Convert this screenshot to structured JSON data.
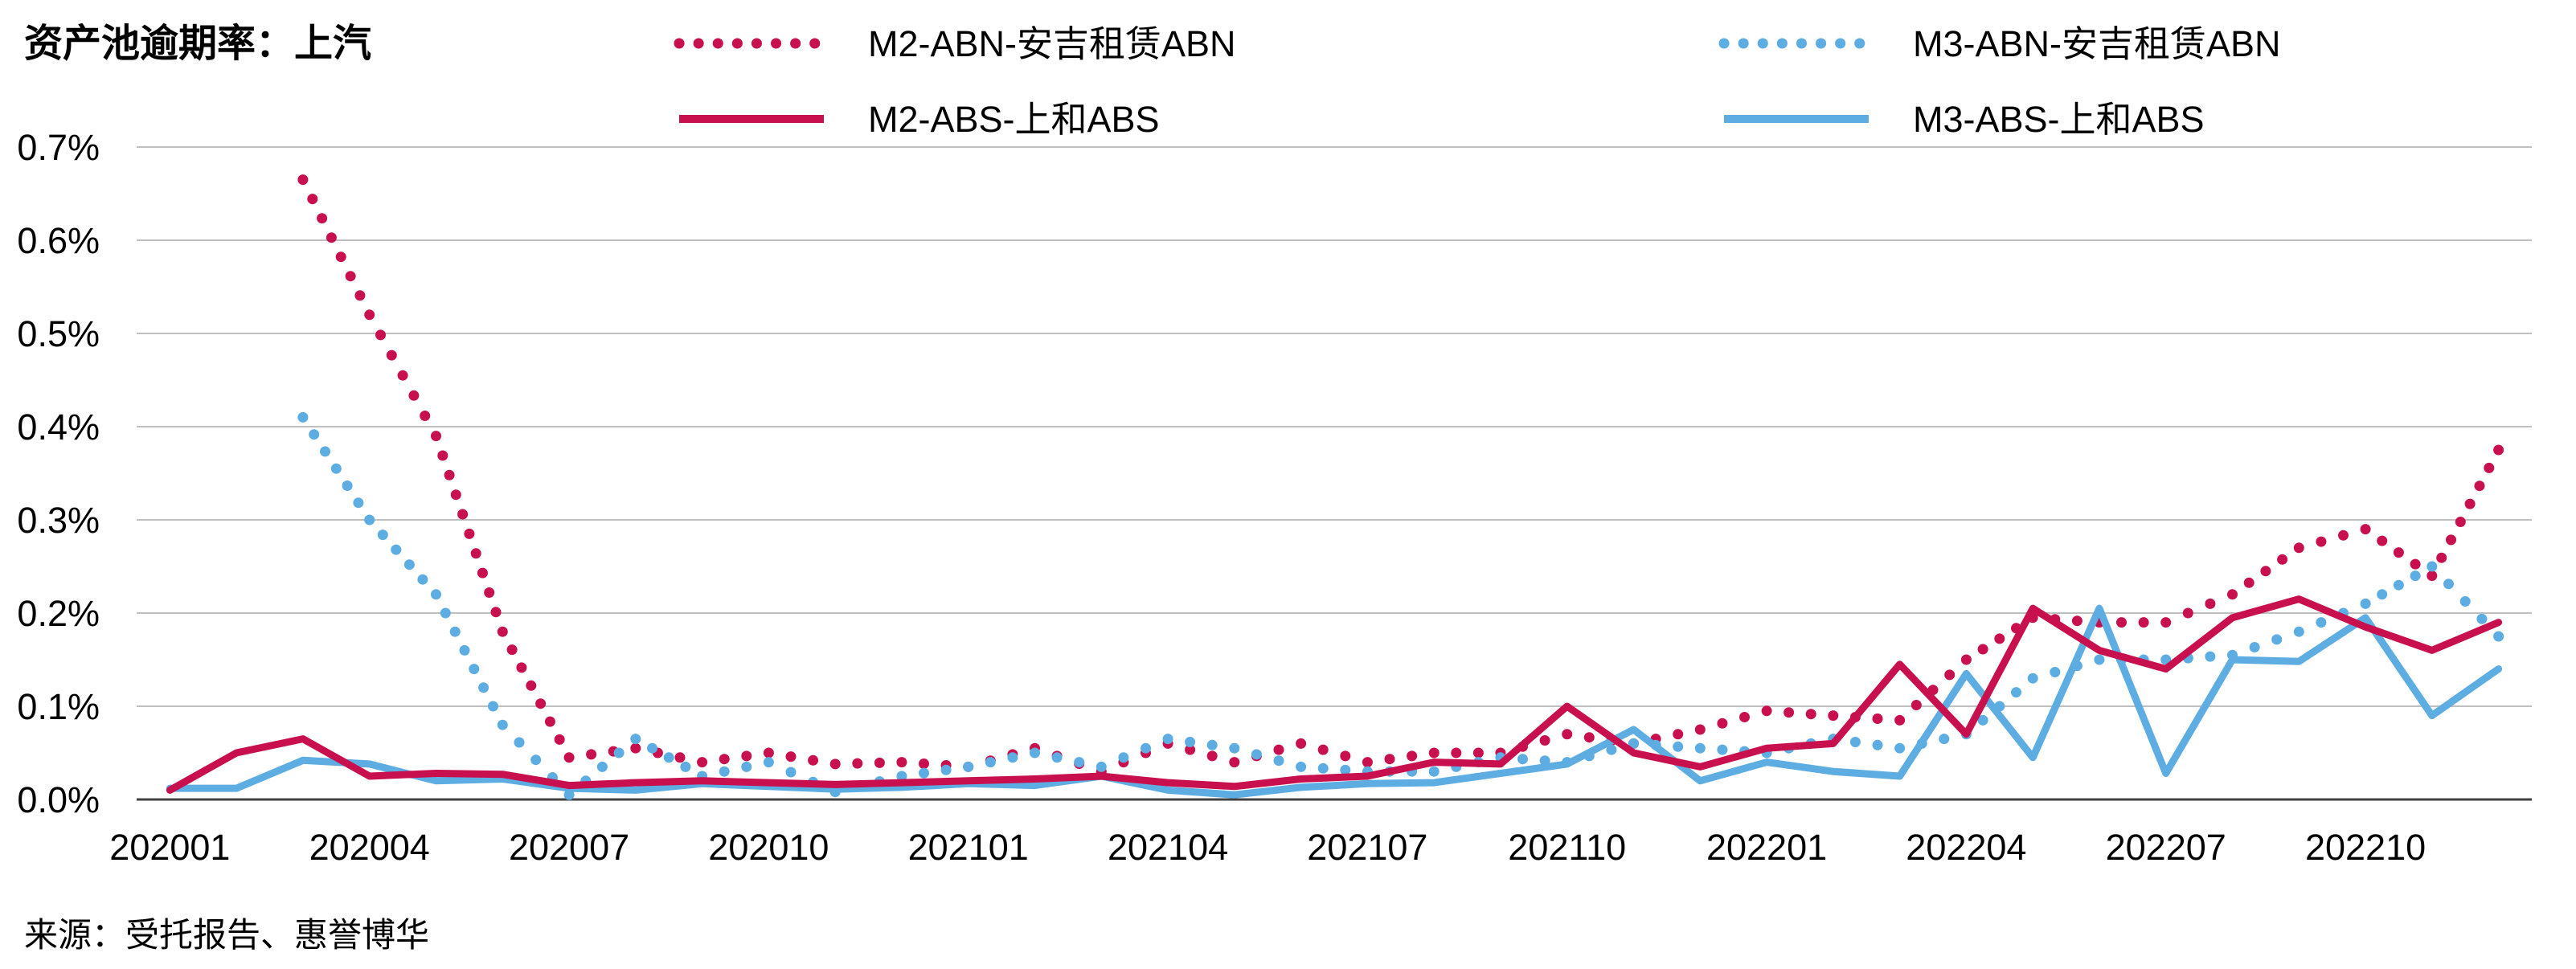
{
  "chart_data": {
    "type": "line",
    "title": "资产池逾期率：上汽",
    "source": "来源：受托报告、惠誉博华",
    "ylim": [
      0,
      0.7
    ],
    "y_unit": "%",
    "y_ticks": [
      "0.0%",
      "0.1%",
      "0.2%",
      "0.3%",
      "0.4%",
      "0.5%",
      "0.6%",
      "0.7%"
    ],
    "x": [
      "202001",
      "202002",
      "202003",
      "202004",
      "202005",
      "202006",
      "202007",
      "202008",
      "202009",
      "202010",
      "202011",
      "202012",
      "202101",
      "202102",
      "202103",
      "202104",
      "202105",
      "202106",
      "202107",
      "202108",
      "202109",
      "202110",
      "202111",
      "202112",
      "202201",
      "202202",
      "202203",
      "202204",
      "202205",
      "202206",
      "202207",
      "202208",
      "202209",
      "202210",
      "202211",
      "202212"
    ],
    "x_tick_labels": [
      "202001",
      "202004",
      "202007",
      "202010",
      "202101",
      "202104",
      "202107",
      "202110",
      "202201",
      "202204",
      "202207",
      "202210"
    ],
    "grid": true,
    "legend_position": "top",
    "series": [
      {
        "name": "M2-ABN-安吉租赁ABN",
        "style": "dotted",
        "color": "#C8104E",
        "values": [
          null,
          null,
          0.665,
          0.52,
          0.39,
          0.18,
          0.045,
          0.055,
          0.04,
          0.05,
          0.038,
          0.04,
          0.035,
          0.055,
          0.03,
          0.06,
          0.04,
          0.06,
          0.04,
          0.05,
          0.05,
          0.07,
          0.06,
          0.075,
          0.095,
          0.09,
          0.085,
          0.15,
          0.195,
          0.19,
          0.19,
          0.22,
          0.27,
          0.29,
          0.24,
          0.375
        ]
      },
      {
        "name": "M3-ABN-安吉租赁ABN",
        "style": "dotted",
        "color": "#5DADE2",
        "values": [
          null,
          null,
          0.41,
          0.3,
          0.22,
          0.08,
          0.005,
          0.065,
          0.025,
          0.04,
          0.008,
          0.025,
          0.035,
          0.05,
          0.035,
          0.065,
          0.055,
          0.035,
          0.03,
          0.03,
          0.045,
          0.04,
          0.06,
          0.055,
          0.05,
          0.065,
          0.055,
          0.07,
          0.13,
          0.15,
          0.15,
          0.155,
          0.18,
          0.21,
          0.25,
          0.175
        ]
      },
      {
        "name": "M2-ABS-上和ABS",
        "style": "solid",
        "color": "#C8104E",
        "values": [
          0.01,
          0.05,
          0.065,
          0.025,
          0.028,
          0.027,
          0.015,
          0.018,
          0.02,
          0.018,
          0.016,
          0.018,
          0.02,
          0.022,
          0.025,
          0.018,
          0.014,
          0.022,
          0.025,
          0.04,
          0.038,
          0.1,
          0.05,
          0.035,
          0.055,
          0.06,
          0.145,
          0.07,
          0.205,
          0.16,
          0.14,
          0.195,
          0.215,
          0.185,
          0.16,
          0.19
        ]
      },
      {
        "name": "M3-ABS-上和ABS",
        "style": "solid",
        "color": "#5DADE2",
        "values": [
          0.012,
          0.012,
          0.042,
          0.038,
          0.02,
          0.022,
          0.012,
          0.01,
          0.017,
          0.014,
          0.011,
          0.013,
          0.017,
          0.015,
          0.025,
          0.01,
          0.005,
          0.013,
          0.017,
          0.018,
          0.028,
          0.038,
          0.075,
          0.02,
          0.04,
          0.03,
          0.025,
          0.135,
          0.045,
          0.205,
          0.028,
          0.15,
          0.148,
          0.195,
          0.09,
          0.14
        ]
      }
    ]
  }
}
